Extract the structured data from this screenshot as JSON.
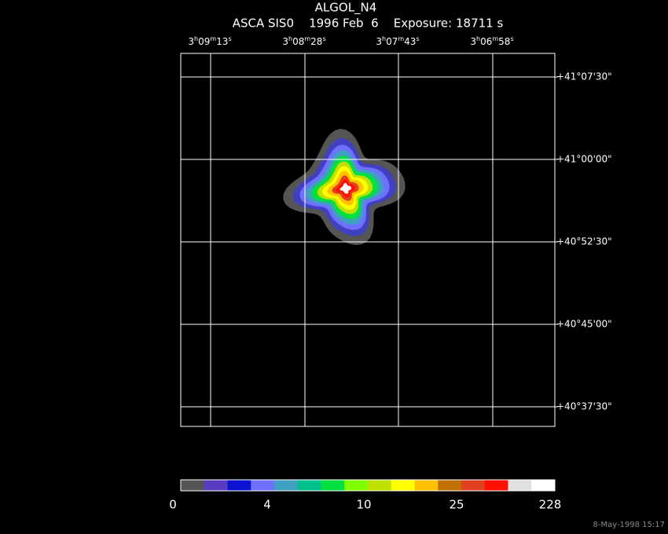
{
  "title": "ALGOL_N4",
  "subtitle": "ASCA SIS0    1996 Feb  6    Exposure: 18711 s",
  "ra_labels": [
    "3h09m13s",
    "3h08m28s",
    "3h07m43s",
    "3h06m58s"
  ],
  "dec_labels": [
    "+41°07'30\"",
    "+41°00'00\"",
    "+40°52'30\"",
    "+40°45'00\"",
    "+40°37'30\""
  ],
  "colorbar": {
    "colors": [
      "#555555",
      "#5a3cc0",
      "#0a14d0",
      "#7070ff",
      "#40a0c0",
      "#00c090",
      "#00e040",
      "#80ff00",
      "#c0e000",
      "#ffff00",
      "#ffc000",
      "#c07000",
      "#e04020",
      "#ff1000",
      "#e0e0e0",
      "#ffffff"
    ],
    "labels": [
      0,
      4,
      10,
      25,
      228
    ]
  },
  "footer": "8-May-1998 15:17"
}
